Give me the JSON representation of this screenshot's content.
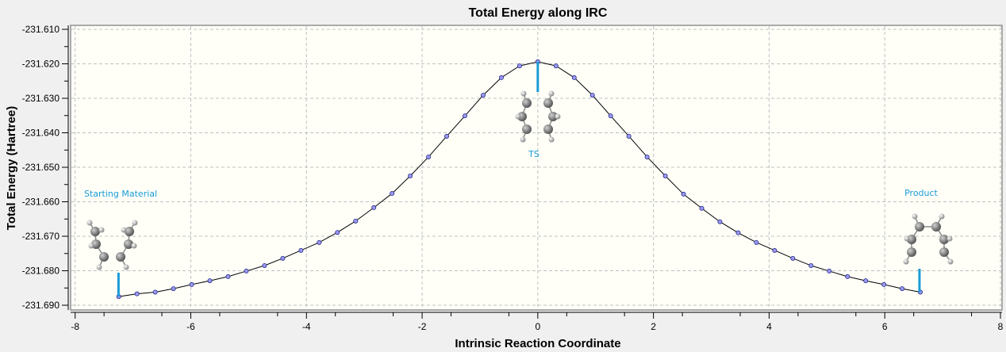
{
  "chart_data": {
    "type": "line",
    "title": "Total Energy along IRC",
    "xlabel": "Intrinsic Reaction Coordinate",
    "ylabel": "Total Energy (Hartree)",
    "xlim": [
      -8,
      8
    ],
    "ylim": [
      -231.69,
      -231.61
    ],
    "xticks": [
      "-8",
      "-6",
      "-4",
      "-2",
      "0",
      "2",
      "4",
      "6",
      "8"
    ],
    "yticks": [
      "-231.610",
      "-231.620",
      "-231.630",
      "-231.640",
      "-231.650",
      "-231.660",
      "-231.670",
      "-231.680",
      "-231.690"
    ],
    "grid": true,
    "x_step": 0.315,
    "k_range": [
      -23,
      21
    ],
    "y": [
      -231.6875,
      -231.6867,
      -231.6862,
      -231.6852,
      -231.684,
      -231.6829,
      -231.6817,
      -231.6801,
      -231.6785,
      -231.6764,
      -231.6741,
      -231.6718,
      -231.6689,
      -231.6656,
      -231.6617,
      -231.6576,
      -231.6525,
      -231.647,
      -231.641,
      -231.6351,
      -231.6291,
      -231.624,
      -231.6206,
      -231.6194,
      -231.6206,
      -231.624,
      -231.6291,
      -231.6351,
      -231.641,
      -231.647,
      -231.6525,
      -231.6578,
      -231.6619,
      -231.6658,
      -231.669,
      -231.6718,
      -231.6741,
      -231.6764,
      -231.6785,
      -231.6801,
      -231.6817,
      -231.6829,
      -231.684,
      -231.6852,
      -231.6862
    ],
    "annotations": [
      {
        "label": "Starting Material",
        "x": -7.25
      },
      {
        "label": "TS",
        "x": 0
      },
      {
        "label": "Product",
        "x": 6.6
      }
    ],
    "colors": {
      "line": "#000000",
      "marker": "#9a9af0",
      "marker_edge": "#2a2a8a",
      "annotation": "#1a9bd7",
      "plot_bg": "#fffff8",
      "grid": "#c0c0c0"
    }
  }
}
